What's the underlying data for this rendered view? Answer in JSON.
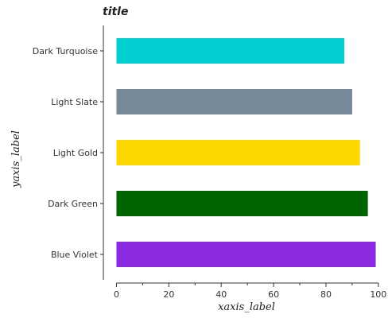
{
  "chart_data": {
    "type": "bar",
    "orientation": "horizontal",
    "title": "title",
    "xlabel": "xaxis_label",
    "ylabel": "yaxis_label",
    "categories": [
      "Blue Violet",
      "Dark Green",
      "Light Gold",
      "Light Slate",
      "Dark Turquoise"
    ],
    "values": [
      99,
      96,
      93,
      90,
      87
    ],
    "colors": [
      "#8a2be2",
      "#006400",
      "#ffd700",
      "#778899",
      "#00ced1"
    ],
    "xlim": [
      -5,
      104
    ],
    "xticks": [
      0,
      20,
      40,
      60,
      80,
      100
    ],
    "xtick_labels": [
      "0",
      "20",
      "40",
      "60",
      "80",
      "100"
    ],
    "grid": false,
    "legend": "none"
  }
}
